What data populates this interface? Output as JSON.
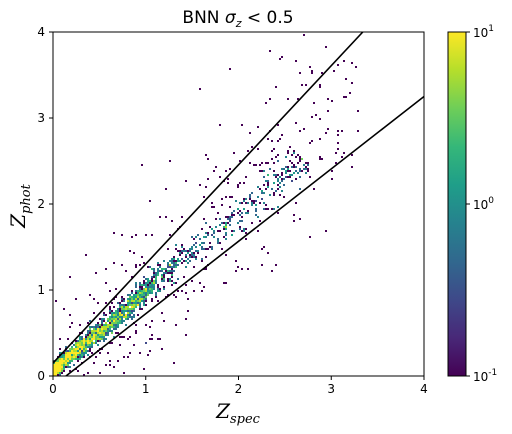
{
  "chart_data": {
    "type": "heatmap",
    "title": {
      "main": "BNN ",
      "sym": "σ",
      "sub": "z",
      "rest": " < 0.5"
    },
    "xlabel": {
      "main": "Z",
      "sub": "spec"
    },
    "ylabel": {
      "main": "Z",
      "sub": "phot"
    },
    "xlim": [
      0,
      4
    ],
    "ylim": [
      0,
      4
    ],
    "xticks": [
      "0",
      "1",
      "2",
      "3",
      "4"
    ],
    "yticks": [
      "0",
      "1",
      "2",
      "3",
      "4"
    ],
    "colorbar": {
      "scale": "log",
      "range": [
        0.1,
        10
      ],
      "ticks": [
        {
          "base": "10",
          "exp": "-1",
          "value": 0.1
        },
        {
          "base": "10",
          "exp": "0",
          "value": 1
        },
        {
          "base": "10",
          "exp": "1",
          "value": 10
        }
      ],
      "colormap": "viridis"
    },
    "reference_lines": [
      {
        "points": [
          [
            0,
            0.15
          ],
          [
            3.34,
            4.0
          ]
        ]
      },
      {
        "points": [
          [
            0.14,
            0
          ],
          [
            4.0,
            3.25
          ]
        ]
      }
    ],
    "density_ridge": [
      {
        "x": 0.0,
        "y": 0.05,
        "density": 10
      },
      {
        "x": 0.2,
        "y": 0.25,
        "density": 10
      },
      {
        "x": 0.4,
        "y": 0.42,
        "density": 10
      },
      {
        "x": 0.6,
        "y": 0.6,
        "density": 9
      },
      {
        "x": 0.8,
        "y": 0.78,
        "density": 6
      },
      {
        "x": 1.0,
        "y": 0.98,
        "density": 3
      },
      {
        "x": 1.2,
        "y": 1.2,
        "density": 0.8
      },
      {
        "x": 1.5,
        "y": 1.45,
        "density": 0.4
      },
      {
        "x": 1.8,
        "y": 1.7,
        "density": 0.3
      },
      {
        "x": 2.1,
        "y": 1.95,
        "density": 0.3
      },
      {
        "x": 2.4,
        "y": 2.3,
        "density": 0.4
      },
      {
        "x": 2.6,
        "y": 2.45,
        "density": 0.3
      }
    ]
  },
  "colors": {
    "line": "#000000",
    "viridis": [
      "#440154",
      "#482878",
      "#3e4989",
      "#31688e",
      "#26828e",
      "#1f9e89",
      "#35b779",
      "#6ece58",
      "#b5de2b",
      "#fde725"
    ]
  }
}
